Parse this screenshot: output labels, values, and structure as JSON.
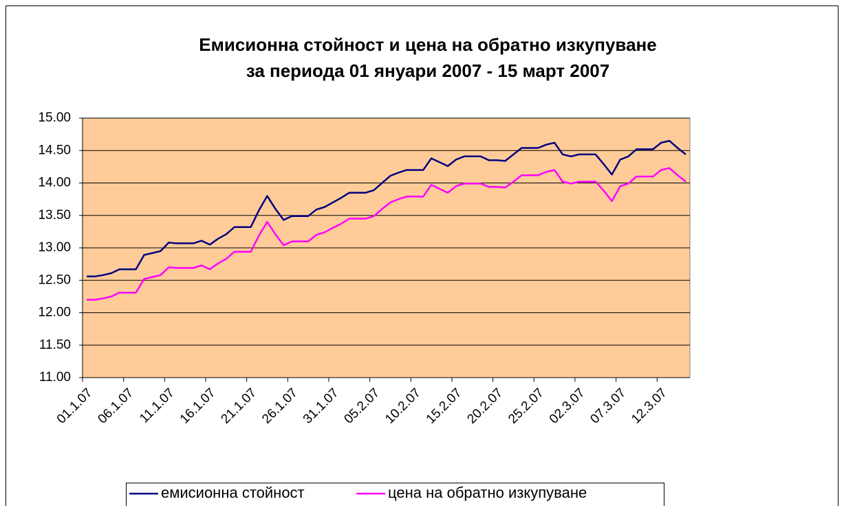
{
  "chart_data": {
    "type": "line",
    "title": "Емисионна стойност и цена на обратно изкупуване",
    "subtitle": "за периода 01 януари 2007 - 15 март 2007",
    "categories": [
      "01.1.07",
      null,
      null,
      null,
      null,
      "06.1.07",
      null,
      null,
      null,
      null,
      "11.1.07",
      null,
      null,
      null,
      null,
      "16.1.07",
      null,
      null,
      null,
      null,
      "21.1.07",
      null,
      null,
      null,
      null,
      "26.1.07",
      null,
      null,
      null,
      null,
      "31.1.07",
      null,
      null,
      null,
      null,
      "05.2.07",
      null,
      null,
      null,
      null,
      "10.2.07",
      null,
      null,
      null,
      null,
      "15.2.07",
      null,
      null,
      null,
      null,
      "20.2.07",
      null,
      null,
      null,
      null,
      "25.2.07",
      null,
      null,
      null,
      null,
      "02.3.07",
      null,
      null,
      null,
      null,
      "07.3.07",
      null,
      null,
      null,
      null,
      "12.3.07",
      null,
      null,
      null
    ],
    "series": [
      {
        "name": "емисионна стойност",
        "color": "#000080",
        "values": [
          12.56,
          12.56,
          12.58,
          12.61,
          12.67,
          12.67,
          12.67,
          12.89,
          12.92,
          12.95,
          13.08,
          13.07,
          13.07,
          13.07,
          13.11,
          13.05,
          13.14,
          13.21,
          13.32,
          13.32,
          13.32,
          13.58,
          13.8,
          13.6,
          13.43,
          13.49,
          13.49,
          13.49,
          13.59,
          13.63,
          13.7,
          13.77,
          13.85,
          13.85,
          13.85,
          13.89,
          14.0,
          14.11,
          14.16,
          14.2,
          14.2,
          14.2,
          14.38,
          14.32,
          14.26,
          14.36,
          14.41,
          14.41,
          14.41,
          14.35,
          14.35,
          14.34,
          14.44,
          14.54,
          14.54,
          14.54,
          14.59,
          14.62,
          14.44,
          14.41,
          14.44,
          14.44,
          14.44,
          14.29,
          14.13,
          14.36,
          14.41,
          14.52,
          14.52,
          14.52,
          14.62,
          14.65,
          14.54,
          14.44
        ]
      },
      {
        "name": "цена на обратно изкупуване",
        "color": "#ff00ff",
        "values": [
          12.2,
          12.2,
          12.22,
          12.25,
          12.31,
          12.31,
          12.31,
          12.52,
          12.55,
          12.58,
          12.7,
          12.69,
          12.69,
          12.69,
          12.73,
          12.67,
          12.76,
          12.83,
          12.94,
          12.94,
          12.94,
          13.19,
          13.4,
          13.21,
          13.04,
          13.1,
          13.1,
          13.1,
          13.2,
          13.24,
          13.31,
          13.37,
          13.45,
          13.45,
          13.45,
          13.49,
          13.6,
          13.7,
          13.75,
          13.79,
          13.79,
          13.79,
          13.97,
          13.91,
          13.85,
          13.95,
          13.99,
          13.99,
          13.99,
          13.94,
          13.94,
          13.93,
          14.02,
          14.12,
          14.12,
          14.12,
          14.17,
          14.2,
          14.02,
          13.99,
          14.02,
          14.02,
          14.02,
          13.88,
          13.72,
          13.95,
          13.99,
          14.1,
          14.1,
          14.1,
          14.2,
          14.23,
          14.12,
          14.02
        ]
      }
    ],
    "ylim": [
      11,
      15
    ],
    "yticks": [
      {
        "value": 11,
        "label": "11.00"
      },
      {
        "value": 11.5,
        "label": "11.50"
      },
      {
        "value": 12,
        "label": "12.00"
      },
      {
        "value": 12.5,
        "label": "12.50"
      },
      {
        "value": 13,
        "label": "13.00"
      },
      {
        "value": 13.5,
        "label": "13.50"
      },
      {
        "value": 14,
        "label": "14.00"
      },
      {
        "value": 14.5,
        "label": "14.50"
      },
      {
        "value": 15,
        "label": "15.00"
      }
    ],
    "grid": true,
    "plot_background": "#ffcc99",
    "legend": "bottom"
  }
}
